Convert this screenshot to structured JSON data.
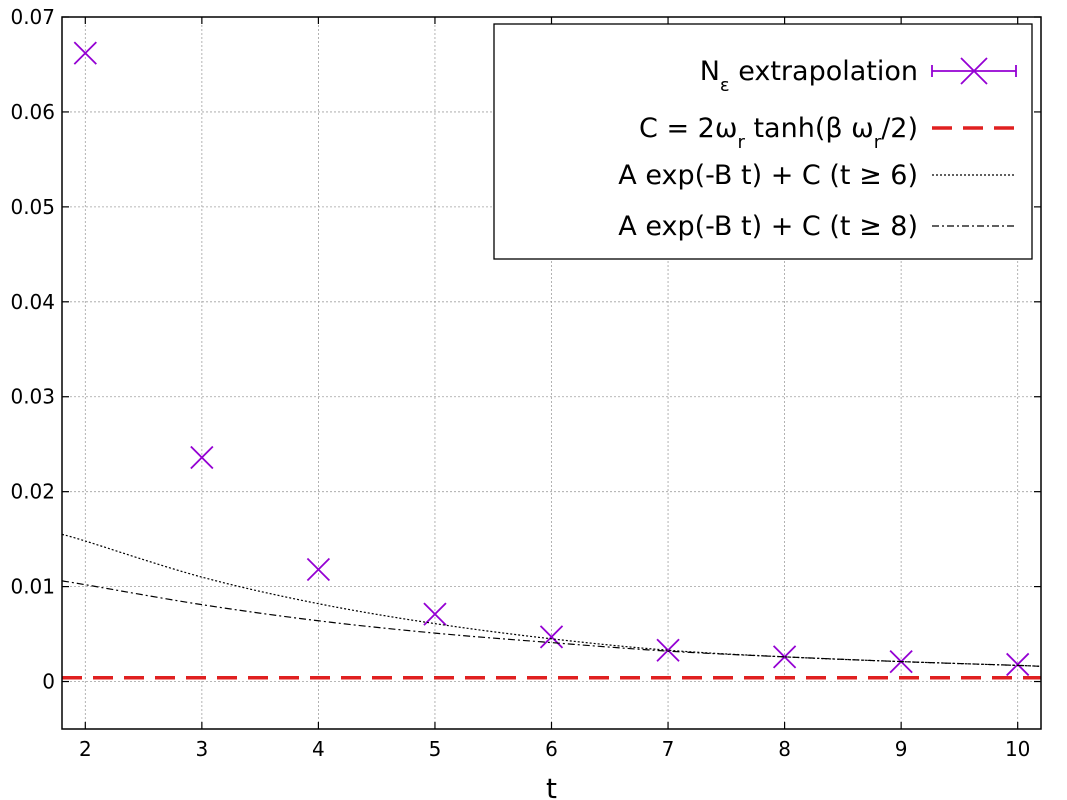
{
  "chart_data": {
    "type": "scatter",
    "title": "",
    "xlabel": "t",
    "ylabel": "",
    "xlim": [
      1.8,
      10.2
    ],
    "ylim": [
      -0.005,
      0.07
    ],
    "grid": true,
    "legend_position": "top-right",
    "x_ticks": [
      "2",
      "3",
      "4",
      "5",
      "6",
      "7",
      "8",
      "9",
      "10"
    ],
    "y_ticks": [
      "0",
      "0.01",
      "0.02",
      "0.03",
      "0.04",
      "0.05",
      "0.06",
      "0.07"
    ],
    "series": [
      {
        "name_main": "N",
        "name_sub": "ε",
        "name_rest": " extrapolation",
        "kind": "points",
        "marker": "x",
        "color": "#9400d3",
        "x": [
          2,
          3,
          4,
          5,
          6,
          7,
          8,
          9,
          10
        ],
        "y": [
          0.0662,
          0.0236,
          0.0118,
          0.0071,
          0.0047,
          0.0033,
          0.0026,
          0.0021,
          0.0018
        ]
      },
      {
        "name_parts": [
          "C = 2ω",
          "r",
          " tanh(β ω",
          "r",
          "/2)"
        ],
        "kind": "hline",
        "color": "#e02020",
        "style": "dashed",
        "y": 0.0004
      },
      {
        "name": "A exp(-B t) + C (t ≥ 6)",
        "kind": "line",
        "color": "#000000",
        "style": "dotted",
        "x": [
          1.8,
          2,
          3,
          4,
          5,
          6,
          7,
          8,
          9,
          10,
          10.2
        ],
        "y": [
          0.0155,
          0.0148,
          0.011,
          0.0082,
          0.0061,
          0.0045,
          0.0033,
          0.0026,
          0.0021,
          0.0017,
          0.0016
        ]
      },
      {
        "name": "A exp(-B t) + C (t ≥ 8)",
        "kind": "line",
        "color": "#000000",
        "style": "dashdot",
        "x": [
          1.8,
          2,
          3,
          4,
          5,
          6,
          7,
          8,
          9,
          10,
          10.2
        ],
        "y": [
          0.0106,
          0.0102,
          0.0081,
          0.0064,
          0.0051,
          0.0041,
          0.0032,
          0.0026,
          0.0021,
          0.0017,
          0.0016
        ]
      }
    ]
  }
}
